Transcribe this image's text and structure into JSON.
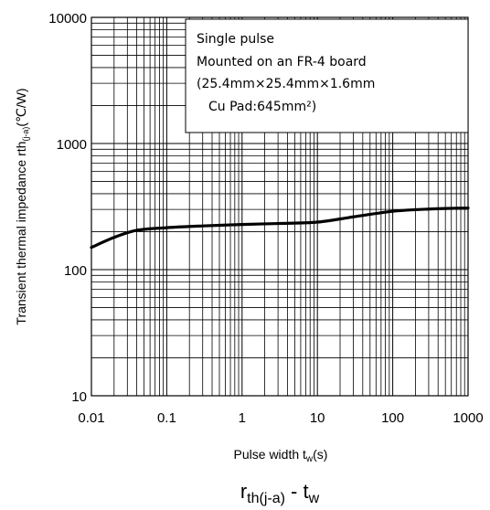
{
  "chart_data": {
    "type": "line",
    "x_scale": "log",
    "y_scale": "log",
    "xlim": [
      0.01,
      1000
    ],
    "ylim": [
      10,
      10000
    ],
    "grid": true,
    "xticks": [
      "0.01",
      "0.1",
      "1",
      "10",
      "100",
      "1000"
    ],
    "yticks": [
      "10",
      "100",
      "1000",
      "10000"
    ],
    "xlabel": {
      "main": "Pulse width  t",
      "sub": "w",
      "unit": "(s)"
    },
    "ylabel": {
      "main": "Transient thermal impedance  rth",
      "sub": "(j-a)",
      "unit": "(℃/W)"
    },
    "caption": {
      "main": "r",
      "sub": "th(j-a)",
      "mid": " - t",
      "sub2": "w"
    },
    "annotation": {
      "lines": [
        "Single pulse",
        "Mounted on an FR-4 board",
        "(25.4mm×25.4mm×1.6mm",
        "Cu Pad:645mm²)"
      ]
    },
    "series": [
      {
        "x": [
          0.01,
          0.02,
          0.04,
          0.1,
          0.3,
          1,
          3,
          10,
          30,
          100,
          300,
          1000
        ],
        "y": [
          150,
          180,
          205,
          215,
          222,
          228,
          232,
          238,
          262,
          290,
          302,
          308
        ]
      }
    ]
  }
}
